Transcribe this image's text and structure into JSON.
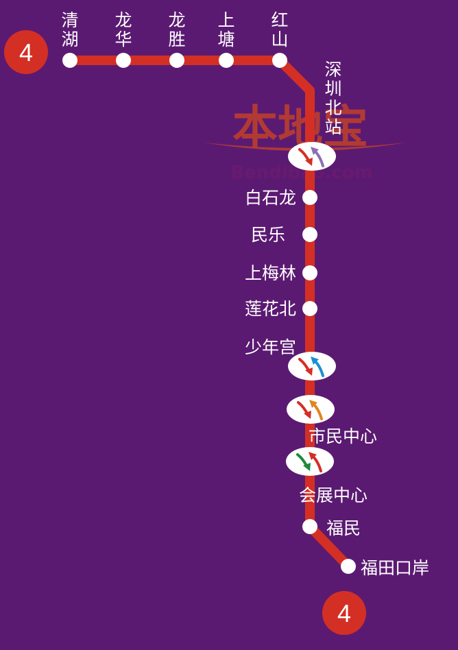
{
  "line": {
    "number": "4",
    "color": "#d42f24",
    "background": "#5b1a72"
  },
  "watermark": {
    "chinese": "本地宝",
    "english": "Bendibao.com"
  },
  "stations": [
    {
      "name": "清湖",
      "kind": "stop"
    },
    {
      "name": "龙华",
      "kind": "stop"
    },
    {
      "name": "龙胜",
      "kind": "stop"
    },
    {
      "name": "上塘",
      "kind": "stop"
    },
    {
      "name": "红山",
      "kind": "stop"
    },
    {
      "name": "深圳北站",
      "kind": "interchange",
      "transfer_colors": [
        "#d42f24",
        "#8e6fb5"
      ]
    },
    {
      "name": "白石龙",
      "kind": "stop"
    },
    {
      "name": "民乐",
      "kind": "stop"
    },
    {
      "name": "上梅林",
      "kind": "stop"
    },
    {
      "name": "莲花北",
      "kind": "stop"
    },
    {
      "name": "少年宫",
      "kind": "interchange",
      "transfer_colors": [
        "#d42f24",
        "#1b8fd2"
      ]
    },
    {
      "name": "市民中心",
      "kind": "interchange",
      "transfer_colors": [
        "#d42f24",
        "#e0851e"
      ]
    },
    {
      "name": "会展中心",
      "kind": "interchange",
      "transfer_colors": [
        "#1d8a3a",
        "#d42f24"
      ]
    },
    {
      "name": "福民",
      "kind": "stop"
    },
    {
      "name": "福田口岸",
      "kind": "stop"
    }
  ]
}
